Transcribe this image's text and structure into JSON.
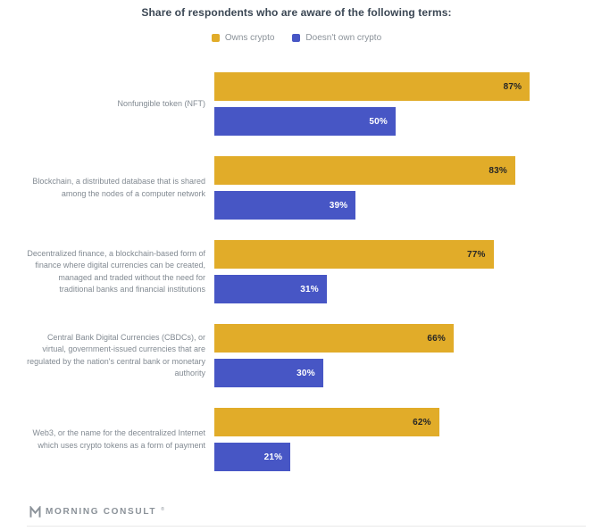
{
  "chart_data": {
    "type": "bar",
    "orientation": "horizontal",
    "title": "Share of respondents who are aware of the following terms:",
    "categories": [
      "Nonfungible token (NFT)",
      "Blockchain, a distributed database that is shared among the nodes of a computer network",
      "Decentralized finance, a blockchain-based form of finance where digital currencies can be created, managed and traded without the need for traditional banks and financial institutions",
      "Central Bank Digital Currencies (CBDCs), or virtual, government-issued currencies that are regulated by the nation's central bank or monetary authority",
      "Web3, or the name for the decentralized Internet which uses crypto tokens as a form of payment"
    ],
    "series": [
      {
        "name": "Owns crypto",
        "color": "#E1AC29",
        "value_text_color": "#262626",
        "values": [
          87,
          83,
          77,
          66,
          62
        ]
      },
      {
        "name": "Doesn't own crypto",
        "color": "#4756C5",
        "value_text_color": "#FFFFFF",
        "values": [
          50,
          39,
          31,
          30,
          21
        ]
      }
    ],
    "value_suffix": "%",
    "xlim": [
      0,
      100
    ],
    "grid": false,
    "legend_position": "top",
    "value_label_position": "inside-end"
  },
  "footer": {
    "brand": "MORNING CONSULT",
    "trademark": "®"
  }
}
